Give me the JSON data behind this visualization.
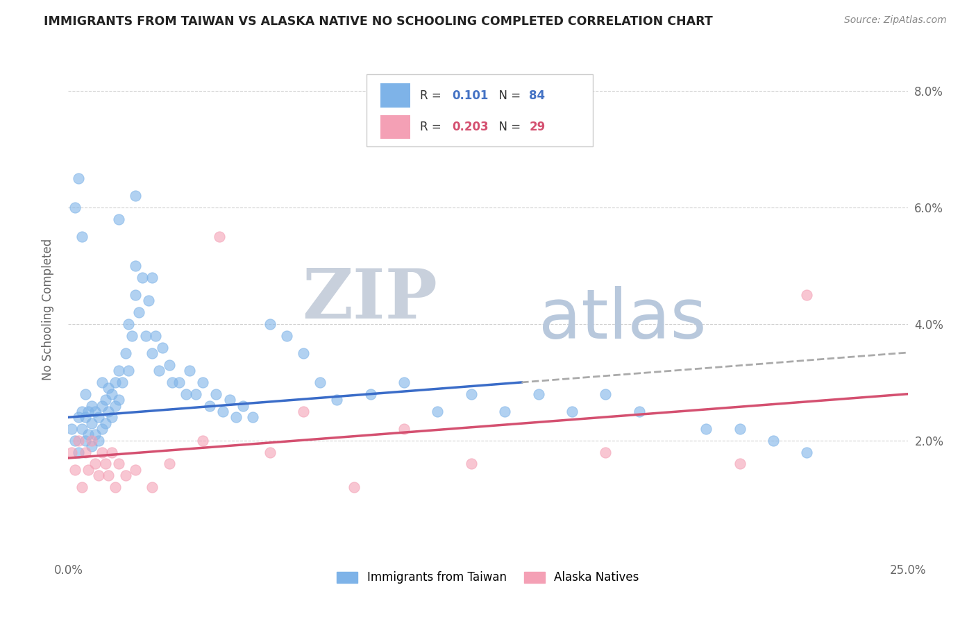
{
  "title": "IMMIGRANTS FROM TAIWAN VS ALASKA NATIVE NO SCHOOLING COMPLETED CORRELATION CHART",
  "source_text": "Source: ZipAtlas.com",
  "ylabel": "No Schooling Completed",
  "xlim": [
    0.0,
    0.25
  ],
  "ylim": [
    0.0,
    0.085
  ],
  "ytick_vals": [
    0.02,
    0.04,
    0.06,
    0.08
  ],
  "ytick_labels": [
    "2.0%",
    "4.0%",
    "6.0%",
    "8.0%"
  ],
  "xtick_vals": [
    0.0,
    0.25
  ],
  "xtick_labels": [
    "0.0%",
    "25.0%"
  ],
  "legend_R1": "0.101",
  "legend_N1": "84",
  "legend_R2": "0.203",
  "legend_N2": "29",
  "color_blue": "#7EB3E8",
  "color_pink": "#F4A0B5",
  "color_blue_line": "#3A6CC8",
  "color_pink_line": "#D45070",
  "color_blue_text": "#4472C4",
  "color_pink_text": "#D45070",
  "watermark_zip": "ZIP",
  "watermark_atlas": "atlas",
  "watermark_color_zip": "#C8D0DC",
  "watermark_color_atlas": "#B8C8DC",
  "background_color": "#FFFFFF",
  "grid_color": "#CCCCCC",
  "label_color": "#666666",
  "legend_label1": "Immigrants from Taiwan",
  "legend_label2": "Alaska Natives",
  "blue_trend_start_y": 0.024,
  "blue_trend_end_y": 0.03,
  "blue_trend_solid_end_x": 0.135,
  "pink_trend_start_y": 0.017,
  "pink_trend_end_y": 0.028,
  "blue_scatter_x": [
    0.001,
    0.002,
    0.003,
    0.003,
    0.004,
    0.004,
    0.005,
    0.005,
    0.005,
    0.006,
    0.006,
    0.007,
    0.007,
    0.007,
    0.008,
    0.008,
    0.009,
    0.009,
    0.01,
    0.01,
    0.01,
    0.011,
    0.011,
    0.012,
    0.012,
    0.013,
    0.013,
    0.014,
    0.014,
    0.015,
    0.015,
    0.016,
    0.017,
    0.018,
    0.018,
    0.019,
    0.02,
    0.02,
    0.021,
    0.022,
    0.023,
    0.024,
    0.025,
    0.026,
    0.027,
    0.028,
    0.03,
    0.031,
    0.033,
    0.035,
    0.036,
    0.038,
    0.04,
    0.042,
    0.044,
    0.046,
    0.048,
    0.05,
    0.052,
    0.055,
    0.06,
    0.065,
    0.07,
    0.075,
    0.08,
    0.09,
    0.1,
    0.11,
    0.12,
    0.13,
    0.14,
    0.15,
    0.16,
    0.17,
    0.19,
    0.2,
    0.21,
    0.22,
    0.002,
    0.003,
    0.004,
    0.015,
    0.02,
    0.025
  ],
  "blue_scatter_y": [
    0.022,
    0.02,
    0.024,
    0.018,
    0.022,
    0.025,
    0.02,
    0.024,
    0.028,
    0.021,
    0.025,
    0.019,
    0.023,
    0.026,
    0.021,
    0.025,
    0.02,
    0.024,
    0.022,
    0.026,
    0.03,
    0.023,
    0.027,
    0.025,
    0.029,
    0.024,
    0.028,
    0.026,
    0.03,
    0.027,
    0.032,
    0.03,
    0.035,
    0.032,
    0.04,
    0.038,
    0.045,
    0.05,
    0.042,
    0.048,
    0.038,
    0.044,
    0.035,
    0.038,
    0.032,
    0.036,
    0.033,
    0.03,
    0.03,
    0.028,
    0.032,
    0.028,
    0.03,
    0.026,
    0.028,
    0.025,
    0.027,
    0.024,
    0.026,
    0.024,
    0.04,
    0.038,
    0.035,
    0.03,
    0.027,
    0.028,
    0.03,
    0.025,
    0.028,
    0.025,
    0.028,
    0.025,
    0.028,
    0.025,
    0.022,
    0.022,
    0.02,
    0.018,
    0.06,
    0.065,
    0.055,
    0.058,
    0.062,
    0.048
  ],
  "pink_scatter_x": [
    0.001,
    0.002,
    0.003,
    0.004,
    0.005,
    0.006,
    0.007,
    0.008,
    0.009,
    0.01,
    0.011,
    0.012,
    0.013,
    0.014,
    0.015,
    0.017,
    0.02,
    0.025,
    0.03,
    0.04,
    0.045,
    0.06,
    0.07,
    0.085,
    0.1,
    0.12,
    0.16,
    0.2,
    0.22
  ],
  "pink_scatter_y": [
    0.018,
    0.015,
    0.02,
    0.012,
    0.018,
    0.015,
    0.02,
    0.016,
    0.014,
    0.018,
    0.016,
    0.014,
    0.018,
    0.012,
    0.016,
    0.014,
    0.015,
    0.012,
    0.016,
    0.02,
    0.055,
    0.018,
    0.025,
    0.012,
    0.022,
    0.016,
    0.018,
    0.016,
    0.045
  ]
}
